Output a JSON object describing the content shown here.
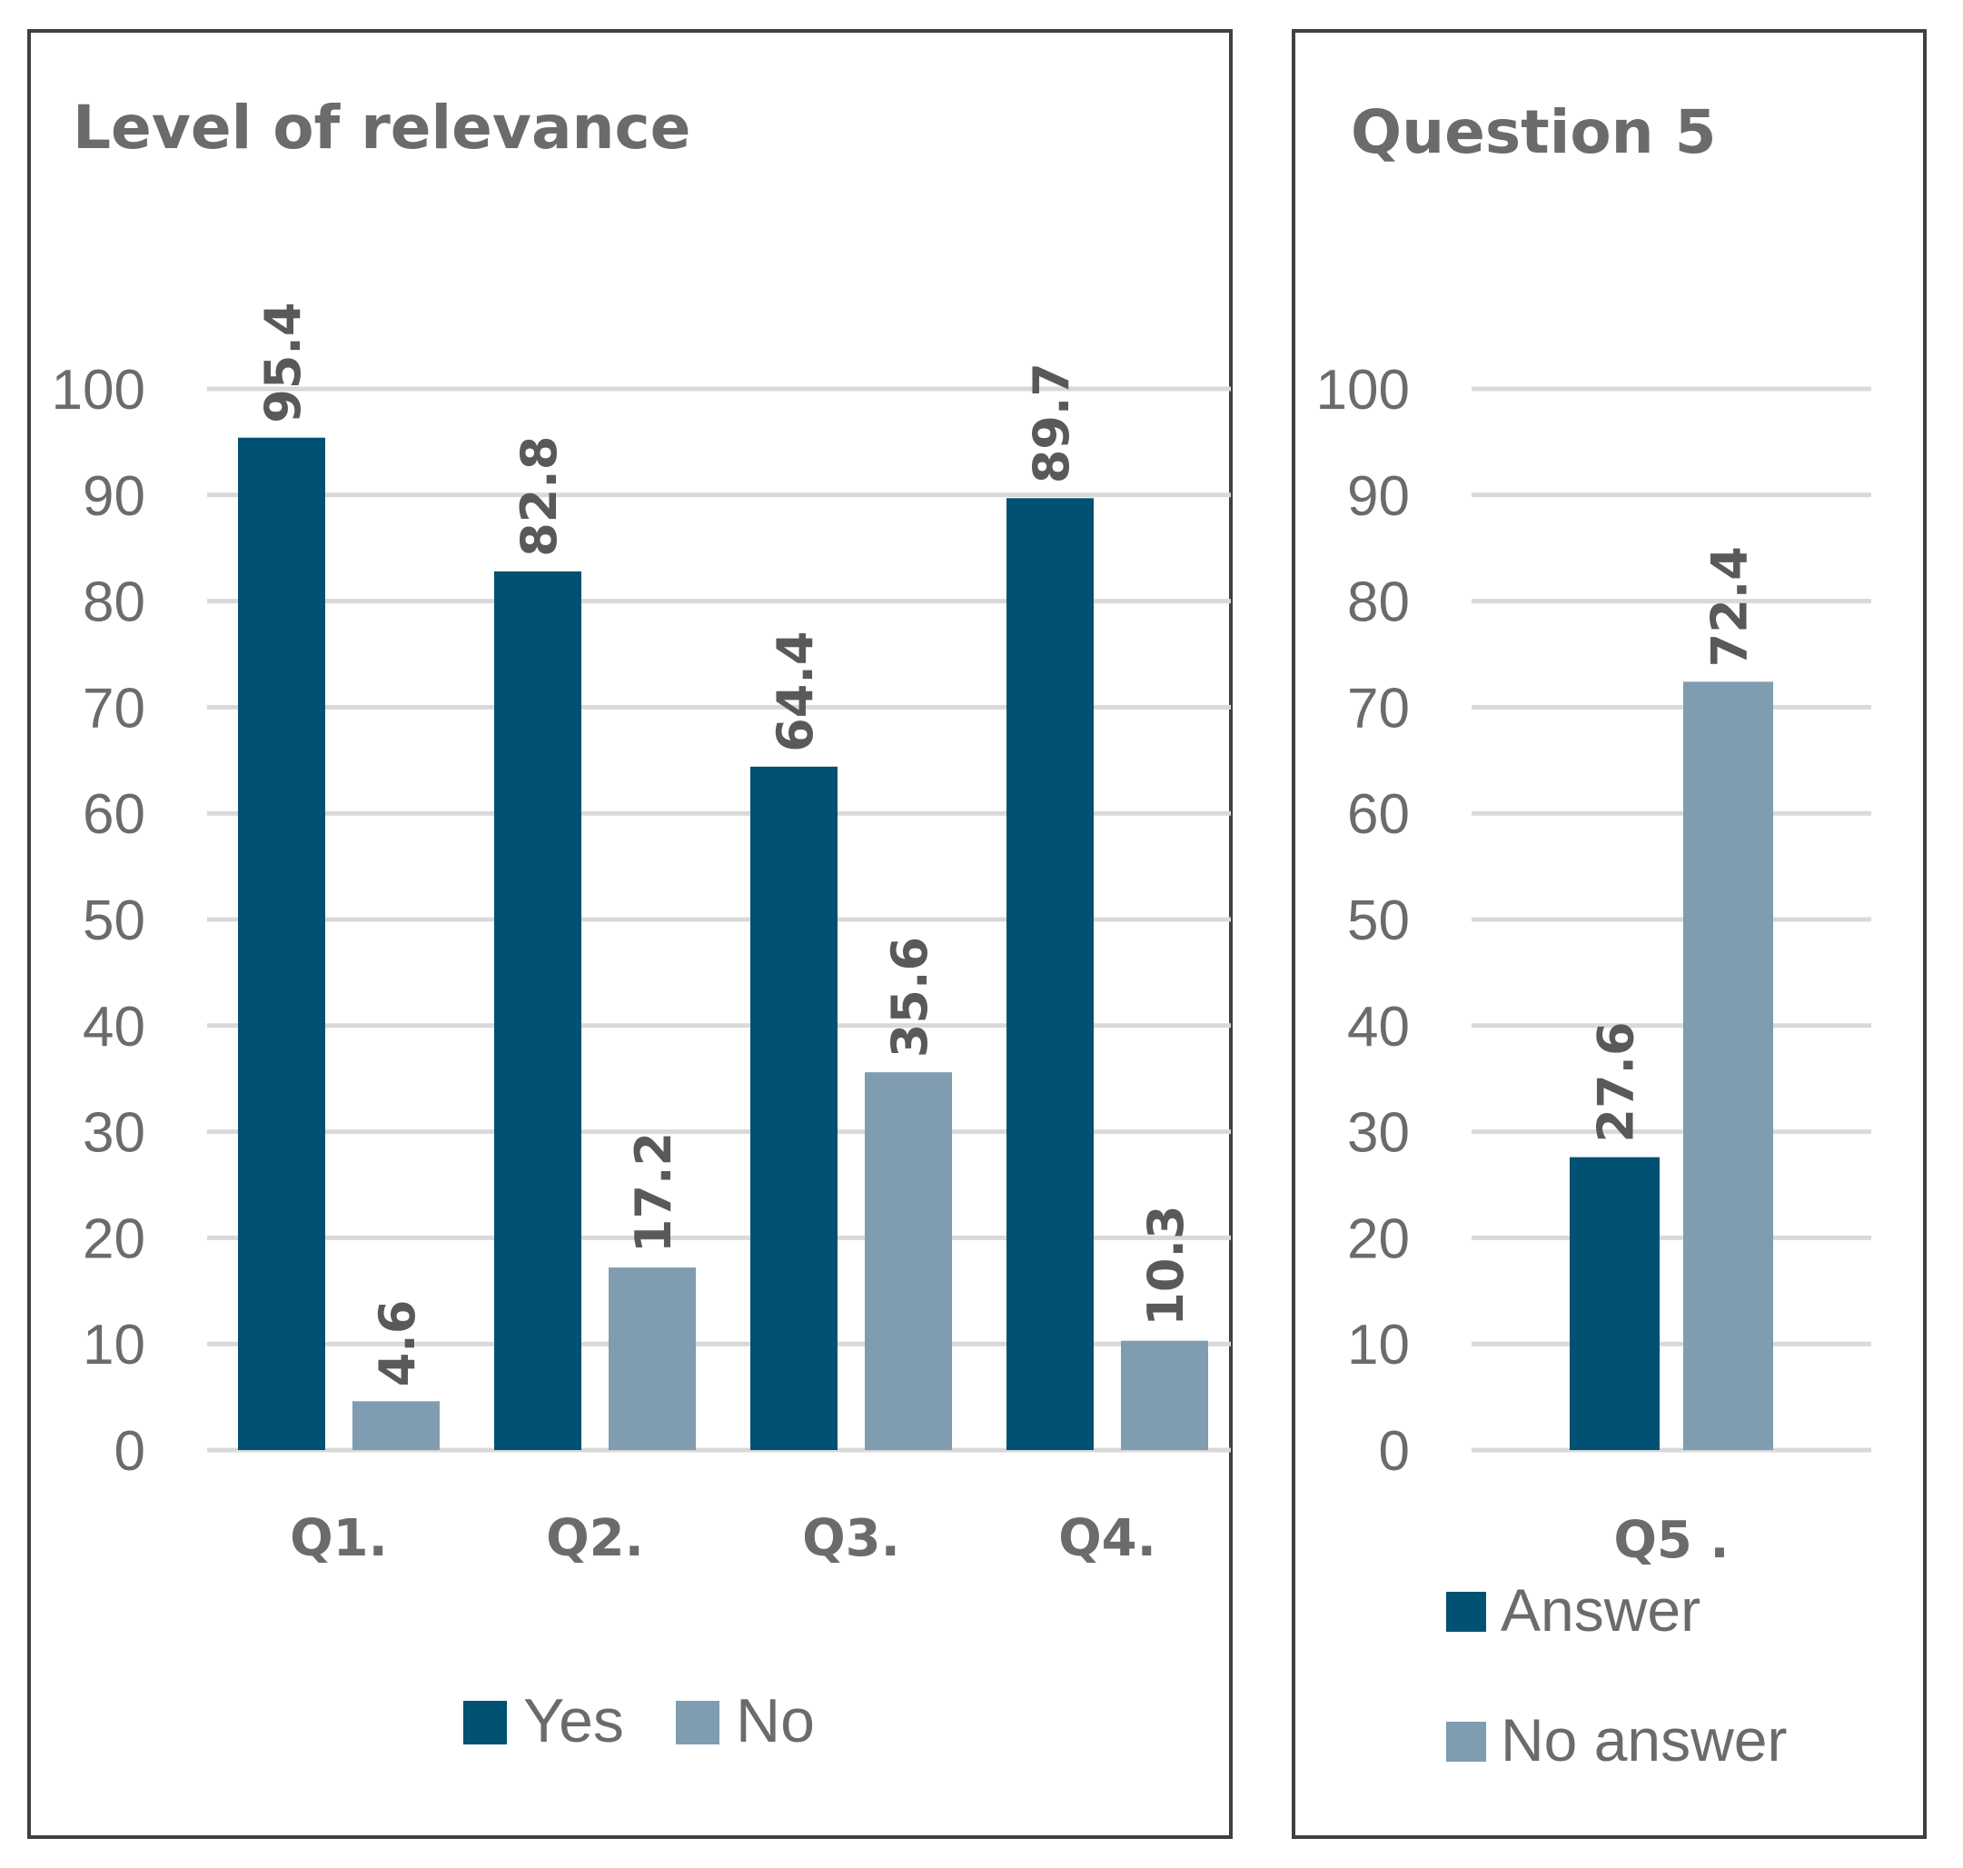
{
  "colors": {
    "series1": "#005172",
    "series2": "#7f9cb0",
    "grid": "#d9d9d9",
    "text": "#6b6b6b",
    "value_text": "#595959",
    "border": "#404040"
  },
  "chart_data": [
    {
      "type": "bar",
      "title": "Level of relevance",
      "categories": [
        "Q1.",
        "Q2.",
        "Q3.",
        "Q4."
      ],
      "series": [
        {
          "name": "Yes",
          "values": [
            95.4,
            82.8,
            64.4,
            89.7
          ]
        },
        {
          "name": "No",
          "values": [
            4.6,
            17.2,
            35.6,
            10.3
          ]
        }
      ],
      "value_labels": [
        [
          "95.4",
          "82.8",
          "64.4",
          "89.7"
        ],
        [
          "4.6",
          "17.2",
          "35.6",
          "10.3"
        ]
      ],
      "ylim": [
        0,
        100
      ],
      "yticks": [
        "0",
        "10",
        "20",
        "30",
        "40",
        "50",
        "60",
        "70",
        "80",
        "90",
        "100"
      ],
      "xlabel": "",
      "ylabel": "",
      "grid": true,
      "legend": {
        "position": "bottom",
        "entries": [
          "Yes",
          "No"
        ]
      }
    },
    {
      "type": "bar",
      "title": "Question 5",
      "categories": [
        "Q5 ."
      ],
      "series": [
        {
          "name": "Answer",
          "values": [
            27.6
          ]
        },
        {
          "name": "No answer",
          "values": [
            72.4
          ]
        }
      ],
      "value_labels": [
        [
          "27.6"
        ],
        [
          "72.4"
        ]
      ],
      "ylim": [
        0,
        100
      ],
      "yticks": [
        "0",
        "10",
        "20",
        "30",
        "40",
        "50",
        "60",
        "70",
        "80",
        "90",
        "100"
      ],
      "xlabel": "",
      "ylabel": "",
      "grid": true,
      "legend": {
        "position": "bottom",
        "entries": [
          "Answer",
          "No answer"
        ]
      }
    }
  ]
}
